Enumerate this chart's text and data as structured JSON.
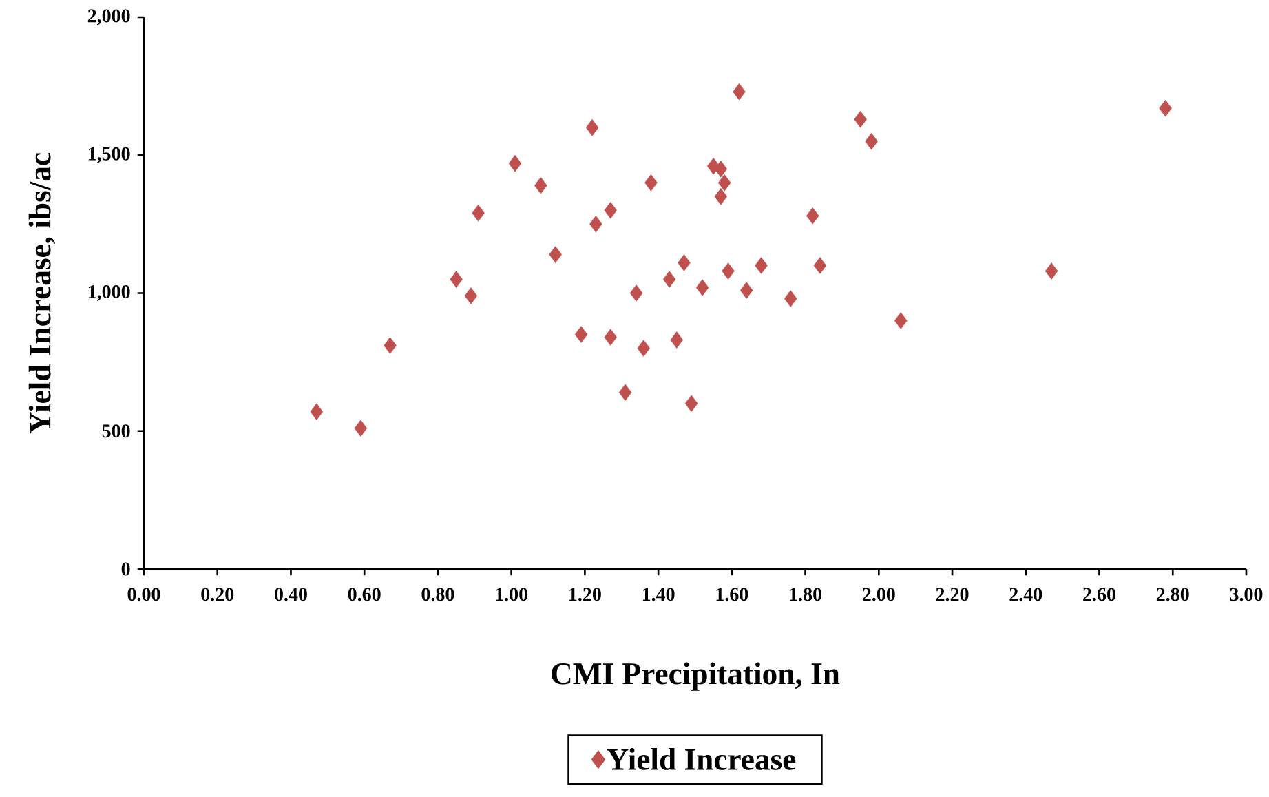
{
  "chart_data": {
    "type": "scatter",
    "xlabel": "CMI Precipitation,  In",
    "ylabel": "Yield Increase, ibs/ac",
    "x": [
      0.47,
      0.59,
      0.67,
      0.85,
      0.89,
      0.91,
      1.01,
      1.08,
      1.12,
      1.19,
      1.22,
      1.23,
      1.27,
      1.27,
      1.31,
      1.34,
      1.36,
      1.38,
      1.43,
      1.45,
      1.47,
      1.49,
      1.52,
      1.55,
      1.57,
      1.58,
      1.57,
      1.59,
      1.62,
      1.64,
      1.68,
      1.76,
      1.82,
      1.84,
      1.95,
      1.98,
      2.06,
      2.47,
      2.78
    ],
    "series": [
      {
        "name": "Yield Increase",
        "color": "#c0504d",
        "values": [
          570,
          510,
          810,
          1050,
          990,
          1290,
          1470,
          1390,
          1140,
          850,
          1600,
          1250,
          840,
          1300,
          640,
          1000,
          800,
          1400,
          1050,
          830,
          1110,
          600,
          1020,
          1460,
          1450,
          1400,
          1350,
          1080,
          1730,
          1010,
          1100,
          980,
          1280,
          1100,
          1630,
          1550,
          900,
          1080,
          1670
        ]
      }
    ],
    "xlim": [
      0,
      3
    ],
    "ylim": [
      0,
      2000
    ],
    "xticks": [
      {
        "value": 0,
        "label": "0.00"
      },
      {
        "value": 0.2,
        "label": "0.20"
      },
      {
        "value": 0.4,
        "label": "0.40"
      },
      {
        "value": 0.6,
        "label": "0.60"
      },
      {
        "value": 0.8,
        "label": "0.80"
      },
      {
        "value": 1.0,
        "label": "1.00"
      },
      {
        "value": 1.2,
        "label": "1.20"
      },
      {
        "value": 1.4,
        "label": "1.40"
      },
      {
        "value": 1.6,
        "label": "1.60"
      },
      {
        "value": 1.8,
        "label": "1.80"
      },
      {
        "value": 2.0,
        "label": "2.00"
      },
      {
        "value": 2.2,
        "label": "2.20"
      },
      {
        "value": 2.4,
        "label": "2.40"
      },
      {
        "value": 2.6,
        "label": "2.60"
      },
      {
        "value": 2.8,
        "label": "2.80"
      },
      {
        "value": 3.0,
        "label": "3.00"
      }
    ],
    "yticks": [
      0,
      {
        "value": 500,
        "label": "500"
      },
      {
        "value": 1000,
        "label": "1,000"
      },
      {
        "value": 1500,
        "label": "1,500"
      },
      {
        "value": 2000,
        "label": "2,000"
      }
    ],
    "marker": "diamond",
    "legend": "bottom",
    "grid": false
  }
}
